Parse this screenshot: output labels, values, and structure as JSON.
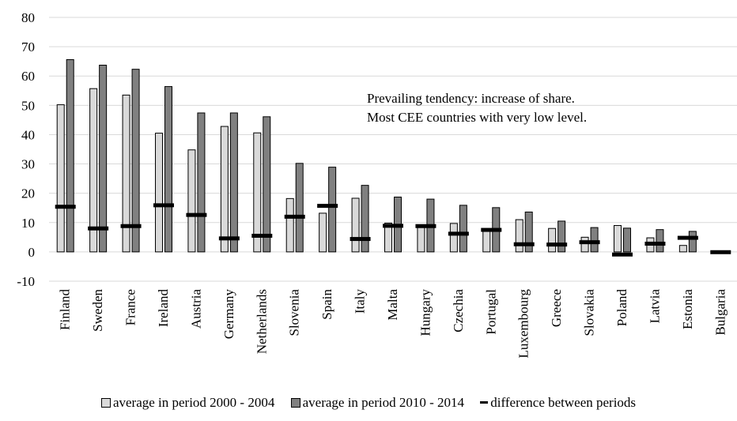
{
  "chart_data": {
    "type": "bar",
    "categories": [
      "Finland",
      "Sweden",
      "France",
      "Ireland",
      "Austria",
      "Germany",
      "Netherlands",
      "Slovenia",
      "Spain",
      "Italy",
      "Malta",
      "Hungary",
      "Czechia",
      "Portugal",
      "Luxembourg",
      "Greece",
      "Slovakia",
      "Poland",
      "Latvia",
      "Estonia",
      "Bulgaria"
    ],
    "series": [
      {
        "name": "average in period 2000 - 2004",
        "values": [
          50.2,
          55.7,
          53.5,
          40.5,
          34.8,
          42.8,
          40.6,
          18.2,
          13.2,
          18.3,
          9.8,
          9.2,
          9.7,
          7.6,
          11.0,
          8.0,
          5.0,
          9.0,
          4.8,
          2.2,
          0.2
        ],
        "color": "#d9d9d9"
      },
      {
        "name": "average in period 2010 - 2014",
        "values": [
          65.6,
          63.7,
          62.3,
          56.4,
          47.4,
          47.4,
          46.1,
          30.2,
          28.9,
          22.7,
          18.7,
          18.0,
          15.9,
          15.1,
          13.6,
          10.5,
          8.3,
          8.1,
          7.6,
          7.0,
          0.1
        ],
        "color": "#808080"
      },
      {
        "name": "difference between periods",
        "values": [
          15.4,
          8.0,
          8.8,
          15.9,
          12.6,
          4.6,
          5.5,
          12.0,
          15.7,
          4.4,
          8.9,
          8.8,
          6.2,
          7.5,
          2.6,
          2.5,
          3.3,
          -0.9,
          2.8,
          4.8,
          -0.1
        ],
        "color": "#000000"
      }
    ],
    "yticks": [
      -10,
      0,
      10,
      20,
      30,
      40,
      50,
      60,
      70,
      80
    ],
    "ylim": [
      -10,
      80
    ],
    "grid": true,
    "legend_position": "bottom",
    "annotation": {
      "line1": "Prevailing tendency: increase of share.",
      "line2": "Most CEE countries with very low level."
    }
  }
}
